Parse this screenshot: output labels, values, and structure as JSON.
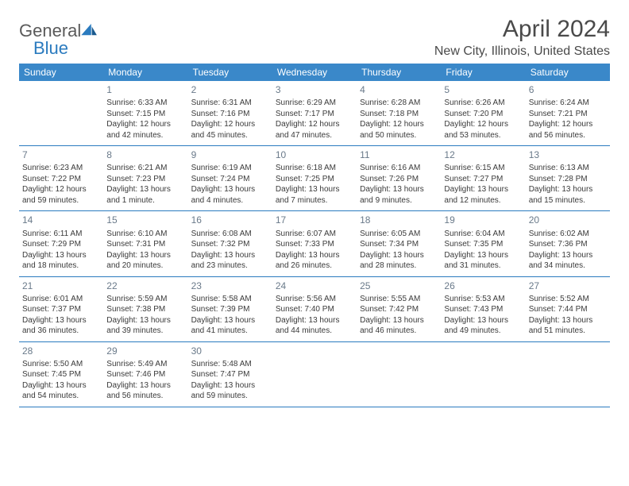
{
  "logo": {
    "word1": "General",
    "word2": "Blue"
  },
  "header": {
    "month_title": "April 2024",
    "location": "New City, Illinois, United States"
  },
  "colors": {
    "header_bg": "#3a88c9",
    "row_border": "#2b7bbf",
    "text": "#3a3a3a",
    "daynum": "#6a7a8a"
  },
  "day_names": [
    "Sunday",
    "Monday",
    "Tuesday",
    "Wednesday",
    "Thursday",
    "Friday",
    "Saturday"
  ],
  "weeks": [
    [
      null,
      {
        "n": "1",
        "sunrise": "Sunrise: 6:33 AM",
        "sunset": "Sunset: 7:15 PM",
        "daylight1": "Daylight: 12 hours",
        "daylight2": "and 42 minutes."
      },
      {
        "n": "2",
        "sunrise": "Sunrise: 6:31 AM",
        "sunset": "Sunset: 7:16 PM",
        "daylight1": "Daylight: 12 hours",
        "daylight2": "and 45 minutes."
      },
      {
        "n": "3",
        "sunrise": "Sunrise: 6:29 AM",
        "sunset": "Sunset: 7:17 PM",
        "daylight1": "Daylight: 12 hours",
        "daylight2": "and 47 minutes."
      },
      {
        "n": "4",
        "sunrise": "Sunrise: 6:28 AM",
        "sunset": "Sunset: 7:18 PM",
        "daylight1": "Daylight: 12 hours",
        "daylight2": "and 50 minutes."
      },
      {
        "n": "5",
        "sunrise": "Sunrise: 6:26 AM",
        "sunset": "Sunset: 7:20 PM",
        "daylight1": "Daylight: 12 hours",
        "daylight2": "and 53 minutes."
      },
      {
        "n": "6",
        "sunrise": "Sunrise: 6:24 AM",
        "sunset": "Sunset: 7:21 PM",
        "daylight1": "Daylight: 12 hours",
        "daylight2": "and 56 minutes."
      }
    ],
    [
      {
        "n": "7",
        "sunrise": "Sunrise: 6:23 AM",
        "sunset": "Sunset: 7:22 PM",
        "daylight1": "Daylight: 12 hours",
        "daylight2": "and 59 minutes."
      },
      {
        "n": "8",
        "sunrise": "Sunrise: 6:21 AM",
        "sunset": "Sunset: 7:23 PM",
        "daylight1": "Daylight: 13 hours",
        "daylight2": "and 1 minute."
      },
      {
        "n": "9",
        "sunrise": "Sunrise: 6:19 AM",
        "sunset": "Sunset: 7:24 PM",
        "daylight1": "Daylight: 13 hours",
        "daylight2": "and 4 minutes."
      },
      {
        "n": "10",
        "sunrise": "Sunrise: 6:18 AM",
        "sunset": "Sunset: 7:25 PM",
        "daylight1": "Daylight: 13 hours",
        "daylight2": "and 7 minutes."
      },
      {
        "n": "11",
        "sunrise": "Sunrise: 6:16 AM",
        "sunset": "Sunset: 7:26 PM",
        "daylight1": "Daylight: 13 hours",
        "daylight2": "and 9 minutes."
      },
      {
        "n": "12",
        "sunrise": "Sunrise: 6:15 AM",
        "sunset": "Sunset: 7:27 PM",
        "daylight1": "Daylight: 13 hours",
        "daylight2": "and 12 minutes."
      },
      {
        "n": "13",
        "sunrise": "Sunrise: 6:13 AM",
        "sunset": "Sunset: 7:28 PM",
        "daylight1": "Daylight: 13 hours",
        "daylight2": "and 15 minutes."
      }
    ],
    [
      {
        "n": "14",
        "sunrise": "Sunrise: 6:11 AM",
        "sunset": "Sunset: 7:29 PM",
        "daylight1": "Daylight: 13 hours",
        "daylight2": "and 18 minutes."
      },
      {
        "n": "15",
        "sunrise": "Sunrise: 6:10 AM",
        "sunset": "Sunset: 7:31 PM",
        "daylight1": "Daylight: 13 hours",
        "daylight2": "and 20 minutes."
      },
      {
        "n": "16",
        "sunrise": "Sunrise: 6:08 AM",
        "sunset": "Sunset: 7:32 PM",
        "daylight1": "Daylight: 13 hours",
        "daylight2": "and 23 minutes."
      },
      {
        "n": "17",
        "sunrise": "Sunrise: 6:07 AM",
        "sunset": "Sunset: 7:33 PM",
        "daylight1": "Daylight: 13 hours",
        "daylight2": "and 26 minutes."
      },
      {
        "n": "18",
        "sunrise": "Sunrise: 6:05 AM",
        "sunset": "Sunset: 7:34 PM",
        "daylight1": "Daylight: 13 hours",
        "daylight2": "and 28 minutes."
      },
      {
        "n": "19",
        "sunrise": "Sunrise: 6:04 AM",
        "sunset": "Sunset: 7:35 PM",
        "daylight1": "Daylight: 13 hours",
        "daylight2": "and 31 minutes."
      },
      {
        "n": "20",
        "sunrise": "Sunrise: 6:02 AM",
        "sunset": "Sunset: 7:36 PM",
        "daylight1": "Daylight: 13 hours",
        "daylight2": "and 34 minutes."
      }
    ],
    [
      {
        "n": "21",
        "sunrise": "Sunrise: 6:01 AM",
        "sunset": "Sunset: 7:37 PM",
        "daylight1": "Daylight: 13 hours",
        "daylight2": "and 36 minutes."
      },
      {
        "n": "22",
        "sunrise": "Sunrise: 5:59 AM",
        "sunset": "Sunset: 7:38 PM",
        "daylight1": "Daylight: 13 hours",
        "daylight2": "and 39 minutes."
      },
      {
        "n": "23",
        "sunrise": "Sunrise: 5:58 AM",
        "sunset": "Sunset: 7:39 PM",
        "daylight1": "Daylight: 13 hours",
        "daylight2": "and 41 minutes."
      },
      {
        "n": "24",
        "sunrise": "Sunrise: 5:56 AM",
        "sunset": "Sunset: 7:40 PM",
        "daylight1": "Daylight: 13 hours",
        "daylight2": "and 44 minutes."
      },
      {
        "n": "25",
        "sunrise": "Sunrise: 5:55 AM",
        "sunset": "Sunset: 7:42 PM",
        "daylight1": "Daylight: 13 hours",
        "daylight2": "and 46 minutes."
      },
      {
        "n": "26",
        "sunrise": "Sunrise: 5:53 AM",
        "sunset": "Sunset: 7:43 PM",
        "daylight1": "Daylight: 13 hours",
        "daylight2": "and 49 minutes."
      },
      {
        "n": "27",
        "sunrise": "Sunrise: 5:52 AM",
        "sunset": "Sunset: 7:44 PM",
        "daylight1": "Daylight: 13 hours",
        "daylight2": "and 51 minutes."
      }
    ],
    [
      {
        "n": "28",
        "sunrise": "Sunrise: 5:50 AM",
        "sunset": "Sunset: 7:45 PM",
        "daylight1": "Daylight: 13 hours",
        "daylight2": "and 54 minutes."
      },
      {
        "n": "29",
        "sunrise": "Sunrise: 5:49 AM",
        "sunset": "Sunset: 7:46 PM",
        "daylight1": "Daylight: 13 hours",
        "daylight2": "and 56 minutes."
      },
      {
        "n": "30",
        "sunrise": "Sunrise: 5:48 AM",
        "sunset": "Sunset: 7:47 PM",
        "daylight1": "Daylight: 13 hours",
        "daylight2": "and 59 minutes."
      },
      null,
      null,
      null,
      null
    ]
  ]
}
